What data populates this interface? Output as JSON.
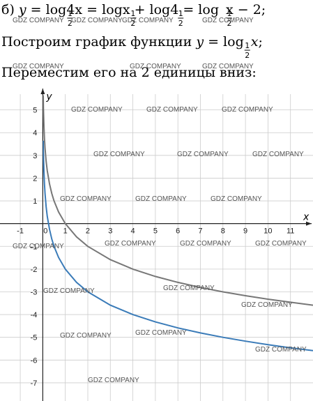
{
  "text": {
    "line1": [
      "б) ",
      "y",
      " = log",
      "4x = log",
      "x + log",
      "4 = log",
      "x − 2;"
    ],
    "frac": {
      "num": "1",
      "den": "2"
    },
    "line2": [
      "Построим график функции ",
      "y",
      " = log",
      "x",
      ";"
    ],
    "line3": "Переместим его на 2 единицы вниз:",
    "watermark": "GDZ COMPANY"
  },
  "chart_data": {
    "type": "line",
    "x_label": "x",
    "y_label": "y",
    "x": [
      0.02,
      0.03,
      0.05,
      0.075,
      0.1,
      0.15,
      0.2,
      0.3,
      0.4,
      0.5,
      0.7,
      1,
      1.5,
      2,
      3,
      4,
      5,
      6,
      7,
      8,
      9,
      10,
      11,
      12
    ],
    "series": [
      {
        "color": "#777777",
        "values": [
          5.644,
          5.059,
          4.322,
          3.737,
          3.322,
          2.737,
          2.322,
          1.737,
          1.322,
          1,
          0.515,
          0,
          -0.585,
          -1,
          -1.585,
          -2,
          -2.322,
          -2.585,
          -2.807,
          -3,
          -3.17,
          -3.322,
          -3.459,
          -3.585
        ]
      },
      {
        "color": "#3a7bb8",
        "values": [
          3.644,
          3.059,
          2.322,
          1.737,
          1.322,
          0.737,
          0.322,
          -0.263,
          -0.678,
          -1,
          -1.485,
          -2,
          -2.585,
          -3,
          -3.585,
          -4,
          -4.322,
          -4.585,
          -4.807,
          -5,
          -5.17,
          -5.322,
          -5.459,
          -5.585
        ]
      }
    ],
    "xlim": [
      -1.9,
      12
    ],
    "ylim": [
      -7.8,
      6
    ],
    "xticks": [
      -1,
      0,
      1,
      2,
      3,
      4,
      5,
      6,
      7,
      8,
      9,
      10,
      11
    ],
    "yticks": [
      -7,
      -6,
      -5,
      -4,
      -3,
      -2,
      -1,
      1,
      2,
      3,
      4,
      5
    ],
    "grid": true
  }
}
